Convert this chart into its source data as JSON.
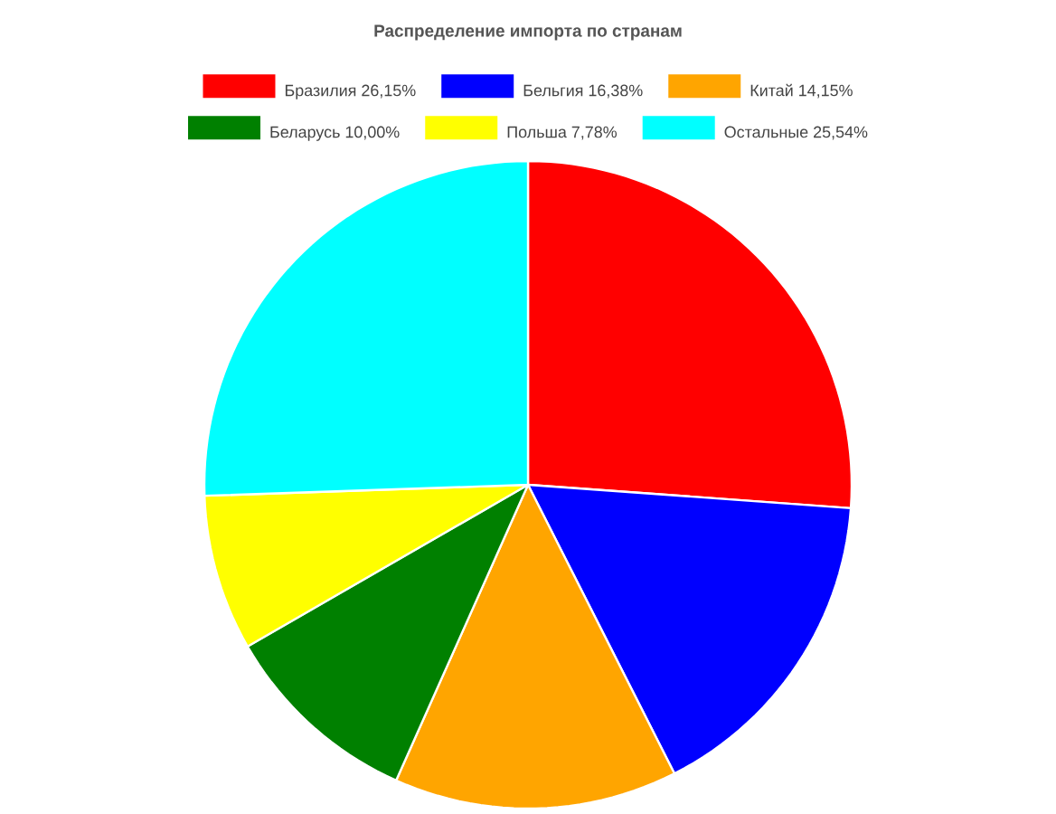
{
  "chart_data": {
    "type": "pie",
    "title": "Распределение импорта по странам",
    "categories": [
      "Бразилия 26,15%",
      "Бельгия 16,38%",
      "Китай 14,15%",
      "Беларусь 10,00%",
      "Польша 7,78%",
      "Остальные  25,54%"
    ],
    "values": [
      26.15,
      16.38,
      14.15,
      10.0,
      7.78,
      25.54
    ],
    "colors": [
      "#ff0000",
      "#0000ff",
      "#ffa500",
      "#008000",
      "#ffff00",
      "#00ffff"
    ],
    "legend": "top"
  }
}
